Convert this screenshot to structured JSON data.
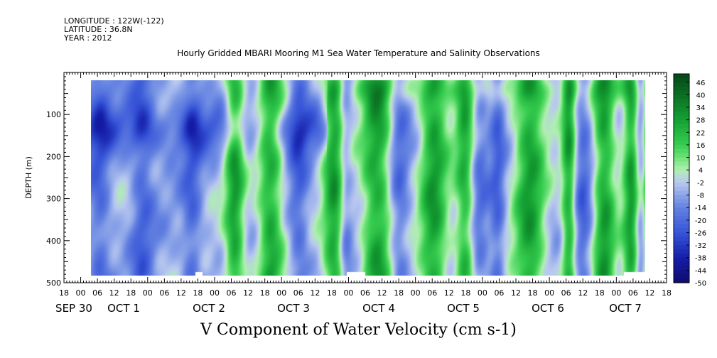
{
  "header": {
    "longitude": "LONGITUDE : 122W(-122)",
    "latitude": "LATITUDE : 36.8N",
    "year": "YEAR : 2012"
  },
  "chart_data": {
    "type": "heatmap",
    "title": "Hourly Gridded MBARI Mooring M1 Sea Water Temperature and Salinity Observations",
    "xlabel": "V Component of Water Velocity (cm s-1)",
    "ylabel": "DEPTH (m)",
    "ylim": [
      500,
      0
    ],
    "y_tick_labels": [
      "100",
      "200",
      "300",
      "400",
      "500"
    ],
    "x_hour_labels": [
      "18",
      "00",
      "06",
      "12",
      "18",
      "00",
      "06",
      "12",
      "18",
      "00",
      "06",
      "12",
      "18",
      "00",
      "06",
      "12",
      "18",
      "00",
      "06",
      "12",
      "18",
      "00",
      "06",
      "12",
      "18",
      "00",
      "06",
      "12",
      "18",
      "00",
      "06",
      "12",
      "18",
      "00",
      "06",
      "12",
      "18"
    ],
    "x_date_labels": [
      "SEP 30",
      "OCT  1",
      "OCT  2",
      "OCT  3",
      "OCT  4",
      "OCT  5",
      "OCT  6",
      "OCT  7"
    ],
    "colorbar": {
      "min": -50,
      "max": 50,
      "labels": [
        "46",
        "40",
        "34",
        "28",
        "22",
        "16",
        "10",
        "4",
        "-2",
        "-8",
        "-14",
        "-20",
        "-26",
        "-32",
        "-38",
        "-44",
        "-50"
      ]
    }
  }
}
